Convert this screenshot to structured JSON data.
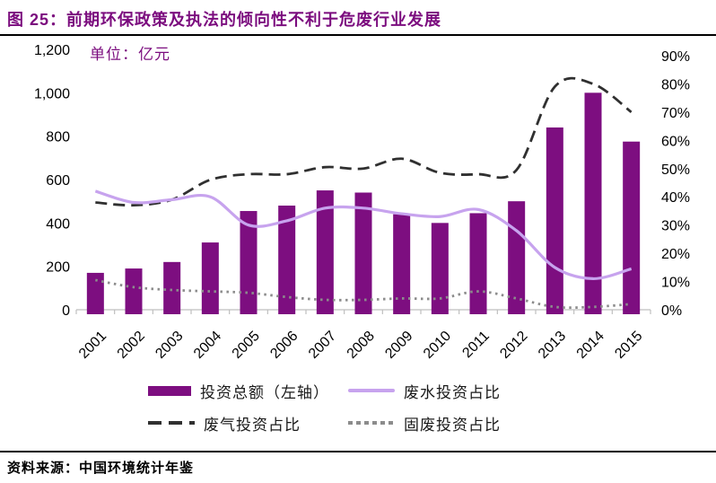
{
  "figure": {
    "title": "图 25：前期环保政策及执法的倾向性不利于危废行业发展",
    "unit_label": "单位：亿元",
    "source": "资料来源：中国环境统计年鉴"
  },
  "colors": {
    "title": "#7B0C7E",
    "bar": "#7D0E80",
    "wastewater": "#C7A3EE",
    "gas": "#303030",
    "solid_waste": "#8C8C8C",
    "axis": "#BFBFBF",
    "rule": "#000000"
  },
  "chart_data": {
    "type": "bar",
    "subtype": "bar-line-combo",
    "title": "前期环保政策及执法的倾向性不利于危废行业发展",
    "categories": [
      "2001",
      "2002",
      "2003",
      "2004",
      "2005",
      "2006",
      "2007",
      "2008",
      "2009",
      "2010",
      "2011",
      "2012",
      "2013",
      "2014",
      "2015"
    ],
    "left_axis": {
      "title": "单位：亿元",
      "min": 0,
      "max": 1200,
      "step": 200,
      "ticks": [
        "1,200",
        "1,000",
        "800",
        "600",
        "400",
        "200",
        "0"
      ]
    },
    "right_axis": {
      "min": 0,
      "max": 90,
      "step": 10,
      "ticks": [
        "90%",
        "80%",
        "70%",
        "60%",
        "50%",
        "40%",
        "30%",
        "20%",
        "10%",
        "0%"
      ]
    },
    "grid": false,
    "legend_position": "bottom",
    "series": [
      {
        "name": "投资总额（左轴）",
        "type": "bar",
        "axis": "left",
        "values": [
          170,
          190,
          220,
          310,
          455,
          480,
          550,
          540,
          440,
          400,
          445,
          500,
          840,
          1000,
          775
        ]
      },
      {
        "name": "废水投资占比",
        "type": "line",
        "style": "solid",
        "axis": "right",
        "values": [
          42,
          38,
          39,
          40,
          30,
          31.5,
          36,
          36,
          34,
          33,
          35.5,
          28,
          15,
          11,
          14.5
        ]
      },
      {
        "name": "废气投资占比",
        "type": "line",
        "style": "dashed",
        "axis": "right",
        "values": [
          38,
          37,
          39,
          46,
          48,
          48,
          50.5,
          50,
          53.5,
          48.5,
          48,
          49.5,
          79,
          80,
          70
        ]
      },
      {
        "name": "固废投资占比",
        "type": "line",
        "style": "dotted",
        "axis": "right",
        "values": [
          10.5,
          8,
          7,
          6.5,
          6,
          4.5,
          3.5,
          3.5,
          4,
          4,
          6.5,
          4,
          1,
          1,
          2
        ]
      }
    ]
  }
}
